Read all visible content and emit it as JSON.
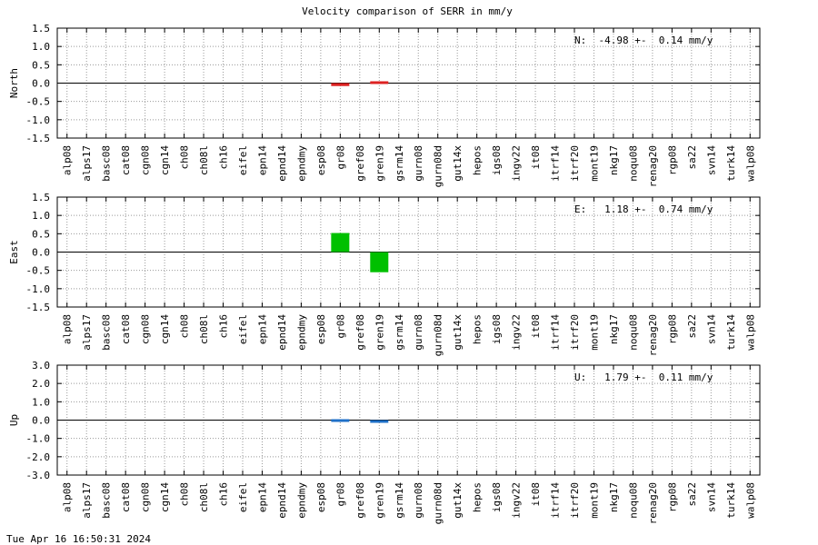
{
  "title": "Velocity comparison of SERR in mm/y",
  "timestamp": "Tue Apr 16 16:50:31 2024",
  "chart_data": [
    {
      "type": "bar",
      "ylabel": "North",
      "annotation": "N:  -4.98 +-  0.14 mm/y",
      "color": "#dd2222",
      "categories": [
        "alp08",
        "alps17",
        "basc08",
        "cat08",
        "cgn08",
        "cgn14",
        "ch08",
        "ch08l",
        "ch16",
        "eifel",
        "epn14",
        "epnd14",
        "epndmy",
        "esp08",
        "gr08",
        "gref08",
        "gren19",
        "gsrm14",
        "gurn08",
        "gurn08d",
        "gut14x",
        "hepos",
        "igs08",
        "ingv22",
        "it08",
        "itrf14",
        "itrf20",
        "mont19",
        "nkg17",
        "noqu08",
        "renag20",
        "rgp08",
        "sa22",
        "svn14",
        "turk14",
        "walp08"
      ],
      "values": [
        null,
        null,
        null,
        null,
        null,
        null,
        null,
        null,
        null,
        null,
        null,
        null,
        null,
        null,
        -0.08,
        null,
        0.05,
        null,
        null,
        null,
        null,
        null,
        null,
        null,
        null,
        null,
        null,
        null,
        null,
        null,
        null,
        null,
        null,
        null,
        null,
        null
      ],
      "ylim": [
        -1.5,
        1.5
      ],
      "yticks": [
        -1.5,
        {
          "value": -1,
          "label": "-1.0"
        },
        -0.5,
        {
          "value": 0,
          "label": "0.0"
        },
        0.5,
        {
          "value": 1,
          "label": "1.0"
        },
        1.5
      ],
      "grid": true
    },
    {
      "type": "bar",
      "ylabel": "East",
      "annotation": "E:   1.18 +-  0.74 mm/y",
      "color": "#00c000",
      "categories": [
        "alp08",
        "alps17",
        "basc08",
        "cat08",
        "cgn08",
        "cgn14",
        "ch08",
        "ch08l",
        "ch16",
        "eifel",
        "epn14",
        "epnd14",
        "epndmy",
        "esp08",
        "gr08",
        "gref08",
        "gren19",
        "gsrm14",
        "gurn08",
        "gurn08d",
        "gut14x",
        "hepos",
        "igs08",
        "ingv22",
        "it08",
        "itrf14",
        "itrf20",
        "mont19",
        "nkg17",
        "noqu08",
        "renag20",
        "rgp08",
        "sa22",
        "svn14",
        "turk14",
        "walp08"
      ],
      "values": [
        null,
        null,
        null,
        null,
        null,
        null,
        null,
        null,
        null,
        null,
        null,
        null,
        null,
        null,
        0.52,
        null,
        -0.55,
        null,
        null,
        null,
        null,
        null,
        null,
        null,
        null,
        null,
        null,
        null,
        null,
        null,
        null,
        null,
        null,
        null,
        null,
        null
      ],
      "ylim": [
        -1.5,
        1.5
      ],
      "yticks": [
        -1.5,
        {
          "value": -1,
          "label": "-1.0"
        },
        -0.5,
        {
          "value": 0,
          "label": "0.0"
        },
        0.5,
        {
          "value": 1,
          "label": "1.0"
        },
        1.5
      ],
      "grid": true
    },
    {
      "type": "bar",
      "ylabel": "Up",
      "annotation": "U:   1.79 +-  0.11 mm/y",
      "color": "#1f70c8",
      "categories": [
        "alp08",
        "alps17",
        "basc08",
        "cat08",
        "cgn08",
        "cgn14",
        "ch08",
        "ch08l",
        "ch16",
        "eifel",
        "epn14",
        "epnd14",
        "epndmy",
        "esp08",
        "gr08",
        "gref08",
        "gren19",
        "gsrm14",
        "gurn08",
        "gurn08d",
        "gut14x",
        "hepos",
        "igs08",
        "ingv22",
        "it08",
        "itrf14",
        "itrf20",
        "mont19",
        "nkg17",
        "noqu08",
        "renag20",
        "rgp08",
        "sa22",
        "svn14",
        "turk14",
        "walp08"
      ],
      "values": [
        null,
        null,
        null,
        null,
        null,
        null,
        null,
        null,
        null,
        null,
        null,
        null,
        null,
        null,
        0.05,
        null,
        -0.08,
        null,
        null,
        null,
        null,
        null,
        null,
        null,
        null,
        null,
        null,
        null,
        null,
        null,
        null,
        null,
        null,
        null,
        null,
        null
      ],
      "ylim": [
        -3,
        3
      ],
      "yticks": [
        {
          "value": -3,
          "label": "-3.0"
        },
        {
          "value": -2,
          "label": "-2.0"
        },
        {
          "value": -1,
          "label": "-1.0"
        },
        {
          "value": 0,
          "label": "0.0"
        },
        {
          "value": 1,
          "label": "1.0"
        },
        {
          "value": 2,
          "label": "2.0"
        },
        {
          "value": 3,
          "label": "3.0"
        }
      ],
      "grid": true
    }
  ]
}
